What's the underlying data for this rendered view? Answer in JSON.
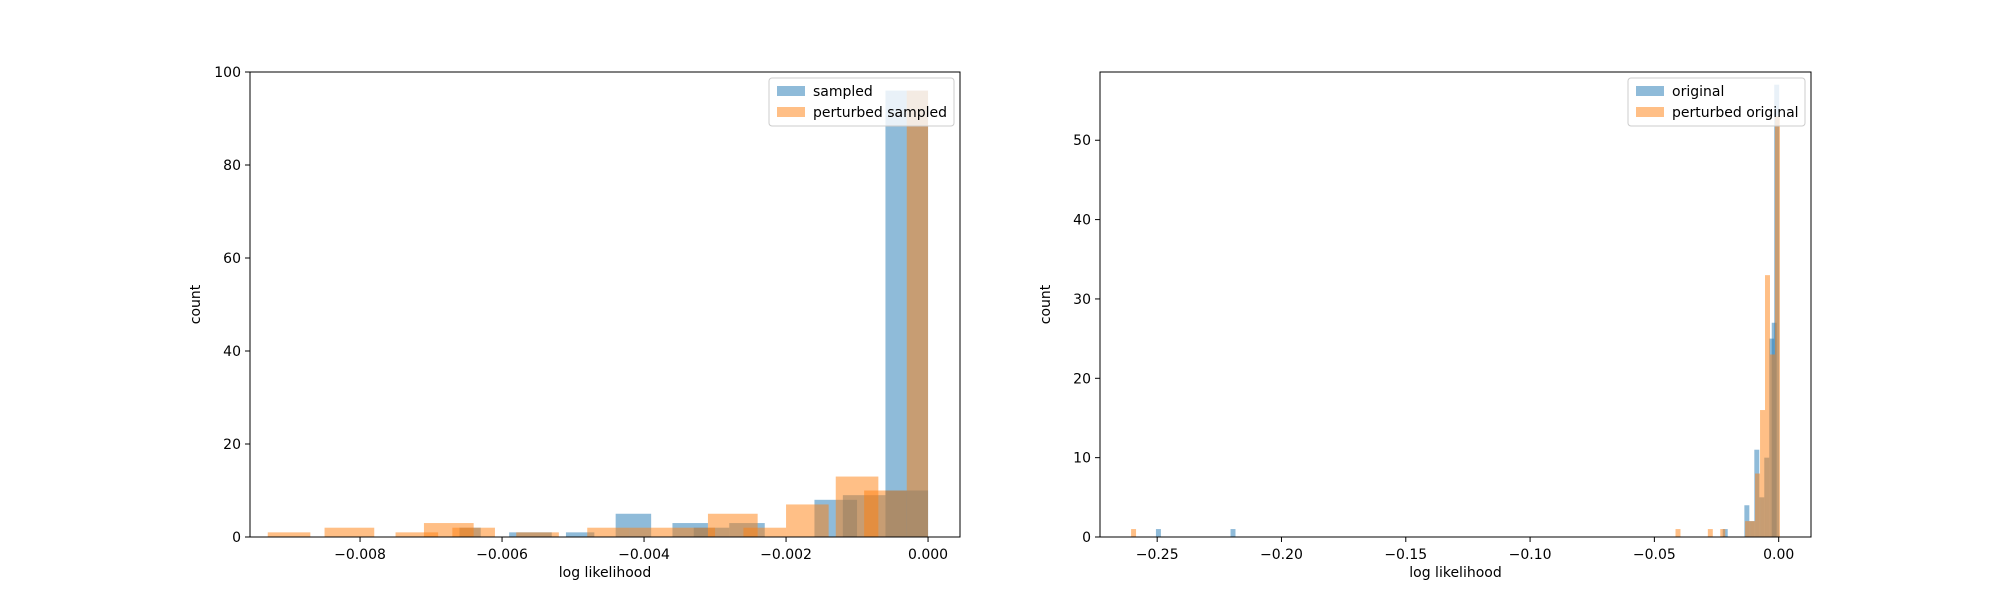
{
  "colors": {
    "blue": "#1f77b4",
    "orange": "#ff7f0e",
    "bar_alpha": 0.5,
    "legend_border": "#cccccc"
  },
  "chart_data": [
    {
      "type": "bar",
      "subtype": "overlapping-histogram",
      "xlabel": "log likelihood",
      "ylabel": "count",
      "xlim": [
        -0.00955,
        0.00045
      ],
      "ylim": [
        0,
        100
      ],
      "xticks": [
        -0.008,
        -0.006,
        -0.004,
        -0.002,
        0.0
      ],
      "xtick_labels": [
        "−0.008",
        "−0.006",
        "−0.004",
        "−0.002",
        "0.000"
      ],
      "yticks": [
        0,
        20,
        40,
        60,
        80,
        100
      ],
      "ytick_labels": [
        "0",
        "20",
        "40",
        "60",
        "80",
        "100"
      ],
      "legend_position": "top-right",
      "series": [
        {
          "name": "sampled",
          "color": "#1f77b4",
          "bins": [
            [
              -0.0066,
              -0.0063,
              2
            ],
            [
              -0.0059,
              -0.0053,
              1
            ],
            [
              -0.0051,
              -0.0047,
              1
            ],
            [
              -0.0044,
              -0.0039,
              5
            ],
            [
              -0.0036,
              -0.0031,
              3
            ],
            [
              -0.0033,
              -0.0028,
              2
            ],
            [
              -0.0028,
              -0.0023,
              3
            ],
            [
              -0.0016,
              -0.001,
              8
            ],
            [
              -0.0012,
              -0.0006,
              9
            ],
            [
              -0.0006,
              0.0,
              10
            ],
            [
              -0.0006,
              0.0,
              96
            ]
          ]
        },
        {
          "name": "perturbed sampled",
          "color": "#ff7f0e",
          "bins": [
            [
              -0.0093,
              -0.0087,
              1
            ],
            [
              -0.0085,
              -0.0078,
              2
            ],
            [
              -0.0075,
              -0.0069,
              1
            ],
            [
              -0.0071,
              -0.0064,
              3
            ],
            [
              -0.0067,
              -0.0061,
              2
            ],
            [
              -0.0058,
              -0.0052,
              1
            ],
            [
              -0.0048,
              -0.0042,
              2
            ],
            [
              -0.0042,
              -0.0036,
              2
            ],
            [
              -0.0036,
              -0.003,
              2
            ],
            [
              -0.0031,
              -0.0024,
              5
            ],
            [
              -0.0026,
              -0.002,
              2
            ],
            [
              -0.002,
              -0.0014,
              7
            ],
            [
              -0.0013,
              -0.0007,
              13
            ],
            [
              -0.0009,
              -0.0003,
              10
            ],
            [
              -0.0003,
              0.0,
              96
            ]
          ]
        }
      ]
    },
    {
      "type": "bar",
      "subtype": "overlapping-histogram",
      "xlabel": "log likelihood",
      "ylabel": "count",
      "xlim": [
        -0.273,
        0.013
      ],
      "ylim": [
        0,
        58.6
      ],
      "xticks": [
        -0.25,
        -0.2,
        -0.15,
        -0.1,
        -0.05,
        0.0
      ],
      "xtick_labels": [
        "−0.25",
        "−0.20",
        "−0.15",
        "−0.10",
        "−0.05",
        "0.00"
      ],
      "yticks": [
        0,
        10,
        20,
        30,
        40,
        50
      ],
      "ytick_labels": [
        "0",
        "10",
        "20",
        "30",
        "40",
        "50"
      ],
      "legend_position": "top-right",
      "series": [
        {
          "name": "original",
          "color": "#1f77b4",
          "bins": [
            [
              -0.2505,
              -0.2485,
              1
            ],
            [
              -0.2205,
              -0.2185,
              1
            ],
            [
              -0.0225,
              -0.0205,
              1
            ],
            [
              -0.0138,
              -0.0118,
              4
            ],
            [
              -0.0118,
              -0.0098,
              2
            ],
            [
              -0.0098,
              -0.0078,
              11
            ],
            [
              -0.0078,
              -0.0058,
              5
            ],
            [
              -0.0058,
              -0.0038,
              10
            ],
            [
              -0.0038,
              -0.0018,
              25
            ],
            [
              -0.0028,
              -0.0008,
              27
            ],
            [
              -0.0018,
              0.0002,
              57
            ]
          ]
        },
        {
          "name": "perturbed original",
          "color": "#ff7f0e",
          "bins": [
            [
              -0.2605,
              -0.2585,
              1
            ],
            [
              -0.0415,
              -0.0395,
              1
            ],
            [
              -0.0285,
              -0.0265,
              1
            ],
            [
              -0.0235,
              -0.0215,
              1
            ],
            [
              -0.0135,
              -0.0115,
              2
            ],
            [
              -0.0115,
              -0.0095,
              2
            ],
            [
              -0.0095,
              -0.0075,
              8
            ],
            [
              -0.0075,
              -0.0055,
              16
            ],
            [
              -0.0055,
              -0.0035,
              33
            ],
            [
              -0.0035,
              -0.0015,
              23
            ],
            [
              -0.0015,
              0.0005,
              53
            ]
          ]
        }
      ]
    }
  ]
}
